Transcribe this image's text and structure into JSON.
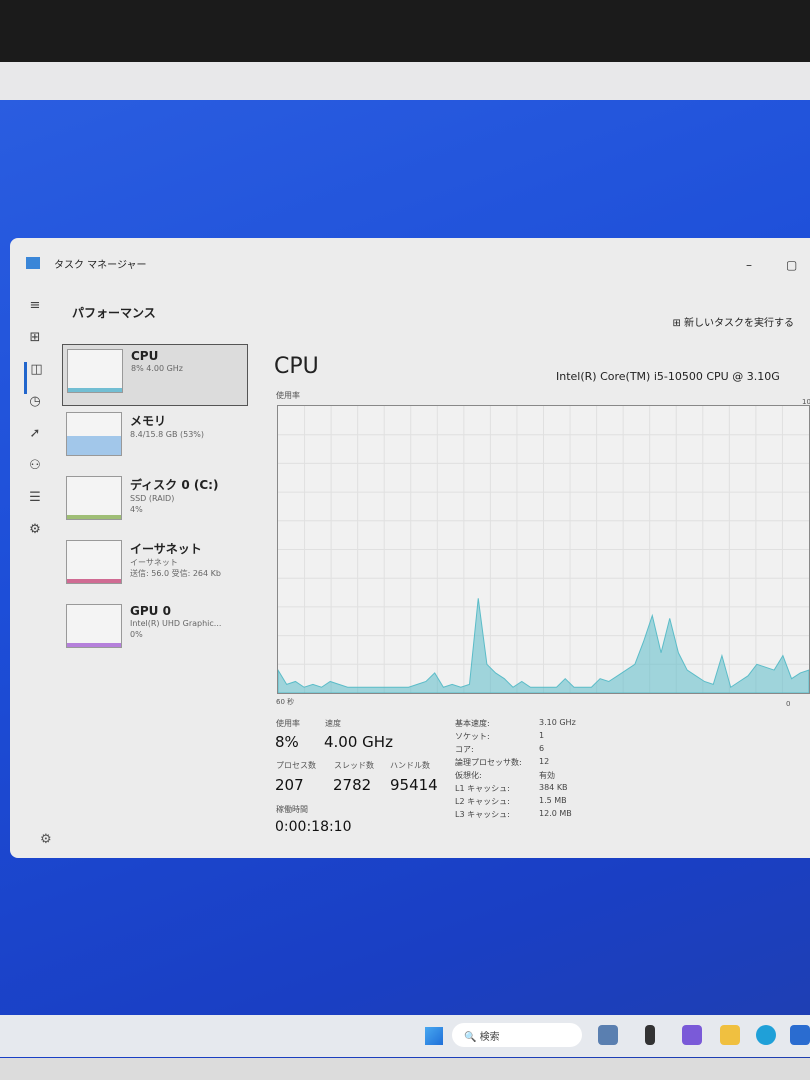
{
  "window": {
    "title": "タスク マネージャー",
    "section": "パフォーマンス",
    "run_task": "新しいタスクを実行する"
  },
  "sidebar": [
    {
      "name": "CPU",
      "sub1": "8% 4.00 GHz",
      "sub2": "",
      "sub3": "",
      "color": "#3aa6c4"
    },
    {
      "name": "メモリ",
      "sub1": "8.4/15.8 GB (53%)",
      "sub2": "",
      "sub3": "",
      "color": "#7fb4e6"
    },
    {
      "name": "ディスク 0 (C:)",
      "sub1": "SSD (RAID)",
      "sub2": "4%",
      "sub3": "",
      "color": "#7aa640"
    },
    {
      "name": "イーサネット",
      "sub1": "イーサネット",
      "sub2": "送信: 56.0 受信: 264 Kb",
      "sub3": "",
      "color": "#c0306a"
    },
    {
      "name": "GPU 0",
      "sub1": "Intel(R) UHD Graphic...",
      "sub2": "0%",
      "sub3": "",
      "color": "#9a4fd0"
    }
  ],
  "main": {
    "title": "CPU",
    "model": "Intel(R) Core(TM) i5-10500 CPU @ 3.10G",
    "util_label": "使用率",
    "axis_left": "60 秒",
    "axis_right": "0",
    "axis_top": "10",
    "usage_label": "使用率",
    "usage": "8%",
    "speed_label": "速度",
    "speed": "4.00 GHz",
    "proc_label": "プロセス数",
    "proc": "207",
    "thread_label": "スレッド数",
    "threads": "2782",
    "handle_label": "ハンドル数",
    "handles": "95414",
    "uptime_label": "稼働時間",
    "uptime": "0:00:18:10",
    "specs": [
      [
        "基本速度:",
        "3.10 GHz"
      ],
      [
        "ソケット:",
        "1"
      ],
      [
        "コア:",
        "6"
      ],
      [
        "論理プロセッサ数:",
        "12"
      ],
      [
        "仮想化:",
        "有効"
      ],
      [
        "L1 キャッシュ:",
        "384 KB"
      ],
      [
        "L2 キャッシュ:",
        "1.5 MB"
      ],
      [
        "L3 キャッシュ:",
        "12.0 MB"
      ]
    ]
  },
  "chart_data": {
    "type": "area",
    "ylim": [
      0,
      100
    ],
    "xlim": [
      60,
      0
    ],
    "color": "#5bbcc8",
    "values": [
      8,
      3,
      4,
      2,
      3,
      2,
      4,
      3,
      2,
      2,
      2,
      2,
      2,
      2,
      2,
      2,
      3,
      4,
      7,
      2,
      3,
      2,
      3,
      33,
      10,
      7,
      5,
      2,
      4,
      2,
      2,
      2,
      2,
      5,
      2,
      2,
      2,
      5,
      4,
      6,
      8,
      10,
      18,
      27,
      14,
      26,
      14,
      8,
      6,
      4,
      3,
      13,
      2,
      4,
      6,
      10,
      9,
      8,
      13,
      5,
      7,
      8
    ]
  },
  "taskbar": {
    "search": "検索"
  }
}
